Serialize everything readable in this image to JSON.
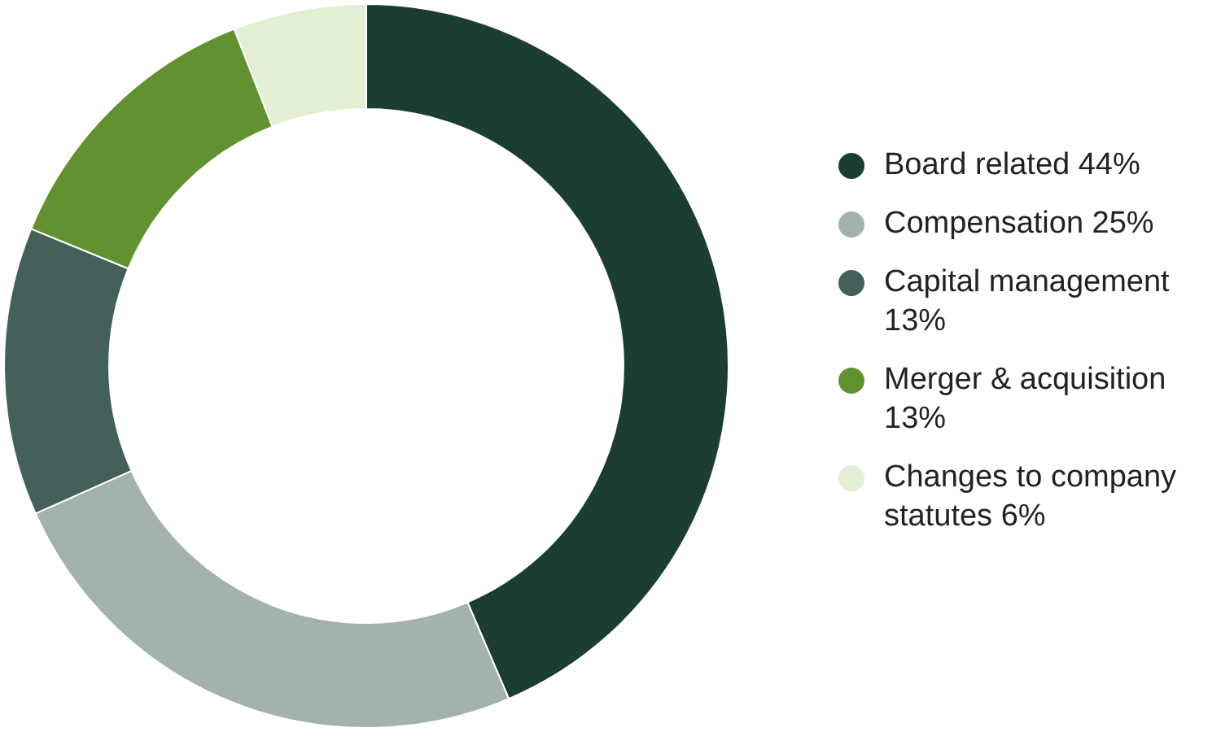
{
  "chart_data": {
    "type": "donut",
    "categories": [
      "Board related",
      "Compensation",
      "Capital management",
      "Merger & acquisition",
      "Changes to company statutes"
    ],
    "values": [
      44,
      25,
      13,
      13,
      6
    ],
    "value_labels": [
      "44%",
      "25%",
      "13%",
      "13%",
      "6%"
    ],
    "colors": [
      "#1b3d33",
      "#a3b3ab",
      "#44605a",
      "#62922f",
      "#e3efd3"
    ],
    "legend": "right"
  }
}
